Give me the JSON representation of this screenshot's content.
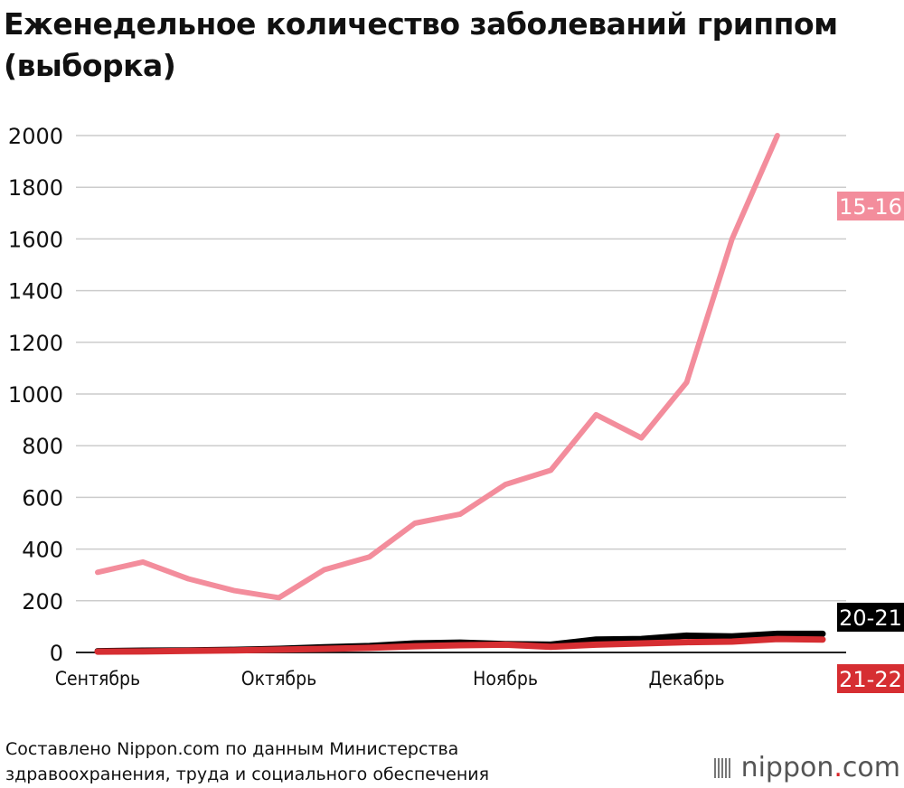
{
  "chart_data": {
    "type": "line",
    "title_lines": [
      "Еженедельное количество заболеваний гриппом",
      "(выборка)"
    ],
    "xlabel": "",
    "ylabel": "",
    "ylim": [
      0,
      2000
    ],
    "y_ticks": [
      0,
      200,
      400,
      600,
      800,
      1000,
      1200,
      1400,
      1600,
      1800,
      2000
    ],
    "x_range": [
      0,
      16
    ],
    "x_labels": [
      {
        "label": "Сентябрь",
        "x": 0
      },
      {
        "label": "Октябрь",
        "x": 4
      },
      {
        "label": "Ноябрь",
        "x": 9
      },
      {
        "label": "Декабрь",
        "x": 13
      }
    ],
    "series": [
      {
        "name": "15-16",
        "color": "#f38d9c",
        "values": [
          310,
          350,
          285,
          240,
          212,
          320,
          370,
          500,
          535,
          650,
          705,
          920,
          830,
          1045,
          1600,
          2000
        ]
      },
      {
        "name": "20-21",
        "color": "#000000",
        "values": [
          5,
          7,
          8,
          10,
          14,
          20,
          25,
          35,
          38,
          32,
          30,
          50,
          52,
          65,
          62,
          72,
          72
        ]
      },
      {
        "name": "21-22",
        "color": "#d62e32",
        "values": [
          3,
          4,
          6,
          8,
          11,
          14,
          18,
          24,
          28,
          30,
          22,
          30,
          35,
          40,
          42,
          52,
          50
        ]
      }
    ]
  },
  "source_lines": [
    "Составлено Nippon.com по данным Министерства",
    "здравоохранения, труда и социального обеспечения"
  ],
  "logo": {
    "name": "nippon",
    "dot": ".",
    "suffix": "com"
  }
}
